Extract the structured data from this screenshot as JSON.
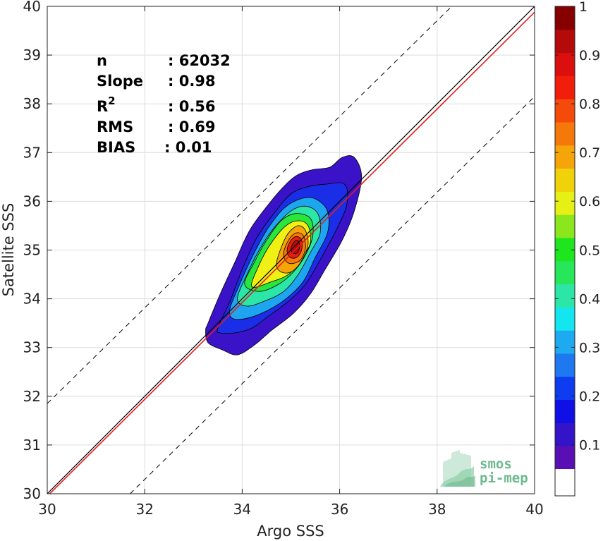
{
  "chart_data": {
    "type": "contour",
    "xlabel": "Argo SSS",
    "ylabel": "Satellite SSS",
    "xlim": [
      30,
      40
    ],
    "ylim": [
      30,
      40
    ],
    "xticks": [
      30,
      32,
      34,
      36,
      38,
      40
    ],
    "yticks": [
      30,
      31,
      32,
      33,
      34,
      35,
      36,
      37,
      38,
      39,
      40
    ],
    "grid": true,
    "stats": [
      {
        "label": "n",
        "value": ": 62032"
      },
      {
        "label": "Slope",
        "value": ": 0.98"
      },
      {
        "label": "R",
        "sup": "2",
        "value": ": 0.56"
      },
      {
        "label": "RMS",
        "value": ": 0.69"
      },
      {
        "label": "BIAS",
        "value": ": 0.01"
      }
    ],
    "identity_line": {
      "from": [
        30,
        30
      ],
      "to": [
        40,
        40
      ],
      "color": "#000000"
    },
    "fit_line": {
      "from": [
        30,
        29.95
      ],
      "to": [
        40,
        39.88
      ],
      "color": "#e41a1c"
    },
    "envelope_lines": [
      {
        "from": [
          30,
          31.85
        ],
        "to": [
          38.3,
          40
        ],
        "style": "dashed"
      },
      {
        "from": [
          31.7,
          30
        ],
        "to": [
          40,
          38.15
        ],
        "style": "dashed"
      }
    ],
    "colorbar": {
      "range": [
        0,
        1
      ],
      "ticks": [
        0.1,
        0.2,
        0.3,
        0.4,
        0.5,
        0.6,
        0.7,
        0.8,
        0.9,
        1
      ],
      "tick_labels": [
        "0.1",
        "0.2",
        "0.3",
        "0.4",
        "0.5",
        "0.6",
        "0.7",
        "0.8",
        "0.9",
        "1"
      ],
      "bottom_white_band": true,
      "colors": [
        "#5a0fb4",
        "#3414c8",
        "#0f0fe6",
        "#0f3cf0",
        "#1e78f0",
        "#1eaaf0",
        "#14e6f0",
        "#2ce6a8",
        "#28e65a",
        "#1ee61e",
        "#8ce61e",
        "#e6f014",
        "#f0d20a",
        "#f5a50a",
        "#f5780a",
        "#f54b0a",
        "#f01e0a",
        "#dc0f0f",
        "#b40a0a",
        "#870000"
      ]
    },
    "contours": [
      {
        "level": 0.05,
        "color": "#3a13c8",
        "points": [
          [
            33.3,
            33.5
          ],
          [
            33.55,
            34.1
          ],
          [
            33.85,
            34.75
          ],
          [
            34.15,
            35.4
          ],
          [
            34.55,
            35.95
          ],
          [
            34.9,
            36.35
          ],
          [
            35.15,
            36.55
          ],
          [
            35.45,
            36.65
          ],
          [
            35.8,
            36.7
          ],
          [
            36.05,
            36.9
          ],
          [
            36.3,
            36.9
          ],
          [
            36.45,
            36.5
          ],
          [
            36.3,
            35.8
          ],
          [
            36.05,
            35.2
          ],
          [
            35.7,
            34.6
          ],
          [
            35.4,
            34.1
          ],
          [
            35.05,
            33.7
          ],
          [
            34.6,
            33.35
          ],
          [
            34.25,
            33.05
          ],
          [
            33.9,
            32.85
          ],
          [
            33.6,
            32.95
          ],
          [
            33.3,
            33.1
          ],
          [
            33.25,
            33.35
          ]
        ]
      },
      {
        "level": 0.15,
        "color": "#1a2ee8",
        "points": [
          [
            33.5,
            33.4
          ],
          [
            33.75,
            33.95
          ],
          [
            34.0,
            34.6
          ],
          [
            34.3,
            35.25
          ],
          [
            34.65,
            35.75
          ],
          [
            35.0,
            36.15
          ],
          [
            35.35,
            36.3
          ],
          [
            35.7,
            36.35
          ],
          [
            36.1,
            36.35
          ],
          [
            36.15,
            35.95
          ],
          [
            35.95,
            35.45
          ],
          [
            35.6,
            34.8
          ],
          [
            35.3,
            34.3
          ],
          [
            34.95,
            33.95
          ],
          [
            34.55,
            33.65
          ],
          [
            34.2,
            33.4
          ],
          [
            33.85,
            33.3
          ],
          [
            33.55,
            33.3
          ]
        ]
      },
      {
        "level": 0.3,
        "color": "#1ea5f0",
        "points": [
          [
            33.75,
            33.8
          ],
          [
            33.95,
            34.3
          ],
          [
            34.2,
            34.85
          ],
          [
            34.5,
            35.4
          ],
          [
            34.85,
            35.85
          ],
          [
            35.2,
            36.05
          ],
          [
            35.5,
            36.05
          ],
          [
            35.75,
            35.8
          ],
          [
            35.75,
            35.35
          ],
          [
            35.5,
            34.85
          ],
          [
            35.25,
            34.35
          ],
          [
            34.9,
            34.0
          ],
          [
            34.5,
            33.75
          ],
          [
            34.1,
            33.6
          ],
          [
            33.8,
            33.6
          ]
        ]
      },
      {
        "level": 0.4,
        "color": "#2ce6a8",
        "points": [
          [
            33.9,
            34.0
          ],
          [
            34.1,
            34.5
          ],
          [
            34.35,
            35.0
          ],
          [
            34.65,
            35.45
          ],
          [
            35.0,
            35.8
          ],
          [
            35.3,
            35.9
          ],
          [
            35.55,
            35.75
          ],
          [
            35.6,
            35.35
          ],
          [
            35.4,
            34.95
          ],
          [
            35.15,
            34.5
          ],
          [
            34.85,
            34.15
          ],
          [
            34.45,
            33.95
          ],
          [
            34.1,
            33.85
          ]
        ]
      },
      {
        "level": 0.5,
        "color": "#28e63c",
        "points": [
          [
            34.05,
            34.3
          ],
          [
            34.25,
            34.75
          ],
          [
            34.5,
            35.2
          ],
          [
            34.8,
            35.6
          ],
          [
            35.1,
            35.75
          ],
          [
            35.4,
            35.65
          ],
          [
            35.45,
            35.3
          ],
          [
            35.3,
            34.9
          ],
          [
            35.05,
            34.55
          ],
          [
            34.75,
            34.3
          ],
          [
            34.35,
            34.15
          ]
        ]
      },
      {
        "level": 0.6,
        "color": "#f0f014",
        "points": [
          [
            34.2,
            34.25
          ],
          [
            34.35,
            34.7
          ],
          [
            34.6,
            35.15
          ],
          [
            34.9,
            35.5
          ],
          [
            35.15,
            35.6
          ],
          [
            35.35,
            35.5
          ],
          [
            35.4,
            35.15
          ],
          [
            35.2,
            34.8
          ],
          [
            34.95,
            34.5
          ],
          [
            34.6,
            34.35
          ]
        ]
      },
      {
        "level": 0.7,
        "color": "#f5a50a",
        "points": [
          [
            34.7,
            34.7
          ],
          [
            34.8,
            35.05
          ],
          [
            34.95,
            35.35
          ],
          [
            35.15,
            35.5
          ],
          [
            35.3,
            35.4
          ],
          [
            35.35,
            35.1
          ],
          [
            35.2,
            34.75
          ],
          [
            35.0,
            34.55
          ],
          [
            34.8,
            34.55
          ]
        ]
      },
      {
        "level": 0.8,
        "color": "#f5780a",
        "points": [
          [
            34.85,
            34.95
          ],
          [
            34.95,
            35.2
          ],
          [
            35.1,
            35.35
          ],
          [
            35.25,
            35.3
          ],
          [
            35.3,
            35.05
          ],
          [
            35.2,
            34.8
          ],
          [
            35.0,
            34.72
          ],
          [
            34.88,
            34.8
          ]
        ]
      },
      {
        "level": 0.9,
        "color": "#e61e0a",
        "points": [
          [
            34.92,
            35.0
          ],
          [
            35.0,
            35.2
          ],
          [
            35.12,
            35.28
          ],
          [
            35.22,
            35.2
          ],
          [
            35.22,
            35.0
          ],
          [
            35.12,
            34.85
          ],
          [
            34.98,
            34.85
          ]
        ]
      },
      {
        "level": 0.95,
        "color": "#b40a0a",
        "points": [
          [
            35.0,
            35.02
          ],
          [
            35.06,
            35.16
          ],
          [
            35.14,
            35.2
          ],
          [
            35.18,
            35.08
          ],
          [
            35.14,
            34.95
          ],
          [
            35.05,
            34.93
          ]
        ]
      }
    ],
    "logo": {
      "line1": "smos",
      "line2": "pi-mep"
    }
  }
}
